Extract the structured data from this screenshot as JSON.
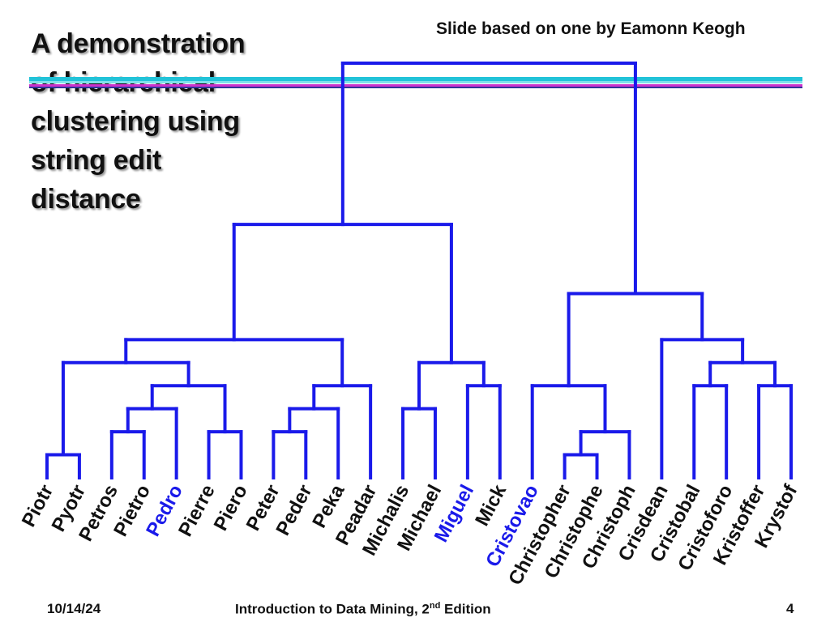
{
  "slide": {
    "title_lines": [
      "A demonstration",
      "of hierarchical",
      "clustering using",
      "string edit",
      "distance"
    ],
    "credit": "Slide based on one by Eamonn Keogh",
    "footer_date": "10/14/24",
    "footer_course": "Introduction to Data Mining, 2",
    "footer_course_sup": "nd",
    "footer_course_suffix": " Edition",
    "footer_page": "4",
    "colors": {
      "dendrogram": "#1a1aea",
      "highlight_label": "#1a1aea",
      "label": "#111111",
      "stripe_cyan": "#22c3d8",
      "stripe_magenta": "#cc33cc",
      "stripe_navy": "#333399"
    }
  },
  "dendrogram": {
    "leaves": [
      {
        "label": "Piotr",
        "highlight": false
      },
      {
        "label": "Pyotr",
        "highlight": false
      },
      {
        "label": "Petros",
        "highlight": false
      },
      {
        "label": "Pietro",
        "highlight": false
      },
      {
        "label": "Pedro",
        "highlight": true
      },
      {
        "label": "Pierre",
        "highlight": false
      },
      {
        "label": "Piero",
        "highlight": false
      },
      {
        "label": "Peter",
        "highlight": false
      },
      {
        "label": "Peder",
        "highlight": false
      },
      {
        "label": "Peka",
        "highlight": false
      },
      {
        "label": "Peadar",
        "highlight": false
      },
      {
        "label": "Michalis",
        "highlight": false
      },
      {
        "label": "Michael",
        "highlight": false
      },
      {
        "label": "Miguel",
        "highlight": true
      },
      {
        "label": "Mick",
        "highlight": false
      },
      {
        "label": "Cristovao",
        "highlight": true
      },
      {
        "label": "Christopher",
        "highlight": false
      },
      {
        "label": "Christophe",
        "highlight": false
      },
      {
        "label": "Christoph",
        "highlight": false
      },
      {
        "label": "Crisdean",
        "highlight": false
      },
      {
        "label": "Cristobal",
        "highlight": false
      },
      {
        "label": "Cristoforo",
        "highlight": false
      },
      {
        "label": "Kristoffer",
        "highlight": false
      },
      {
        "label": "Krystof",
        "highlight": false
      }
    ],
    "merges": [
      {
        "children": [
          "Piotr",
          "Pyotr"
        ],
        "height": 1
      },
      {
        "children": [
          "Petros",
          "Pietro"
        ],
        "height": 2
      },
      {
        "children": [
          "c2",
          "Pedro"
        ],
        "height": 3
      },
      {
        "children": [
          "Pierre",
          "Piero"
        ],
        "height": 2
      },
      {
        "children": [
          "c3",
          "c4"
        ],
        "height": 4
      },
      {
        "children": [
          "c1",
          "c5"
        ],
        "height": 5
      },
      {
        "children": [
          "Peter",
          "Peder"
        ],
        "height": 2
      },
      {
        "children": [
          "c7",
          "Peka"
        ],
        "height": 3
      },
      {
        "children": [
          "c8",
          "Peadar"
        ],
        "height": 4
      },
      {
        "children": [
          "c6",
          "c9"
        ],
        "height": 6
      },
      {
        "children": [
          "Michalis",
          "Michael"
        ],
        "height": 3
      },
      {
        "children": [
          "Miguel",
          "Mick"
        ],
        "height": 4
      },
      {
        "children": [
          "c11",
          "c12"
        ],
        "height": 5
      },
      {
        "children": [
          "c10",
          "c13"
        ],
        "height": 11
      },
      {
        "children": [
          "Christopher",
          "Christophe"
        ],
        "height": 1
      },
      {
        "children": [
          "c15",
          "Christoph"
        ],
        "height": 2
      },
      {
        "children": [
          "Cristovao",
          "c16"
        ],
        "height": 4
      },
      {
        "children": [
          "Cristobal",
          "Cristoforo"
        ],
        "height": 4
      },
      {
        "children": [
          "Kristoffer",
          "Krystof"
        ],
        "height": 4
      },
      {
        "children": [
          "c18",
          "c19"
        ],
        "height": 5
      },
      {
        "children": [
          "Crisdean",
          "c20"
        ],
        "height": 6
      },
      {
        "children": [
          "c17",
          "c21"
        ],
        "height": 8
      },
      {
        "children": [
          "c14",
          "c22"
        ],
        "height": 18
      }
    ]
  }
}
